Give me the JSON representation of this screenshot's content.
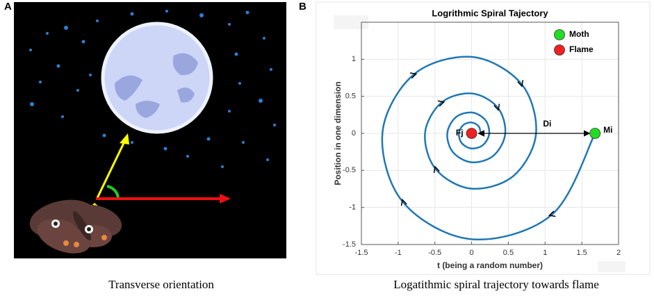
{
  "figure": {
    "panel_a": {
      "label": "A",
      "caption": "Transverse orientation"
    },
    "panel_b": {
      "label": "B",
      "caption": "Logatithmic spiral trajectory towards flame"
    }
  },
  "chart_data": {
    "type": "line",
    "title": "Logrithmic Spiral Tajectory",
    "xlabel": "t (being a random number)",
    "ylabel": "Position in one dimension",
    "xlim": [
      -1.5,
      2
    ],
    "ylim": [
      -1.5,
      1.5
    ],
    "xticks": [
      -1.5,
      -1,
      -0.5,
      0,
      0.5,
      1,
      1.5,
      2
    ],
    "yticks": [
      -1.5,
      -1,
      -0.5,
      0,
      0.5,
      1
    ],
    "grid": true,
    "legend": "upper right",
    "curve": {
      "color": "#1f77b4",
      "x": [
        1.68,
        1.095,
        0,
        -0.931,
        -1.214,
        -0.791,
        0,
        0.673,
        0.877,
        0.572,
        0,
        -0.486,
        -0.634,
        -0.413,
        0,
        0.352,
        0.458,
        0.299,
        0,
        -0.254,
        -0.331,
        -0.216,
        0,
        0.184,
        0.24,
        0.156,
        0,
        -0.133,
        -0.173,
        -0.113,
        0,
        0.096,
        0.125
      ],
      "values": [
        0,
        -1.095,
        -1.428,
        -0.931,
        0,
        0.791,
        1.032,
        0.673,
        0,
        -0.572,
        -0.746,
        -0.486,
        0,
        0.413,
        0.539,
        0.352,
        0,
        -0.299,
        -0.39,
        -0.254,
        0,
        0.216,
        0.282,
        0.184,
        0,
        -0.156,
        -0.204,
        -0.133,
        0,
        0.113,
        0.147,
        0.096,
        0
      ]
    },
    "series": [
      {
        "name": "Moth",
        "color": "#22dd22",
        "x": [
          1.68
        ],
        "values": [
          0
        ]
      },
      {
        "name": "Flame",
        "color": "#ee2222",
        "x": [
          0
        ],
        "values": [
          0
        ]
      }
    ],
    "annotations": {
      "flame": "Fj",
      "distance": "Di",
      "moth": "Mi"
    }
  }
}
